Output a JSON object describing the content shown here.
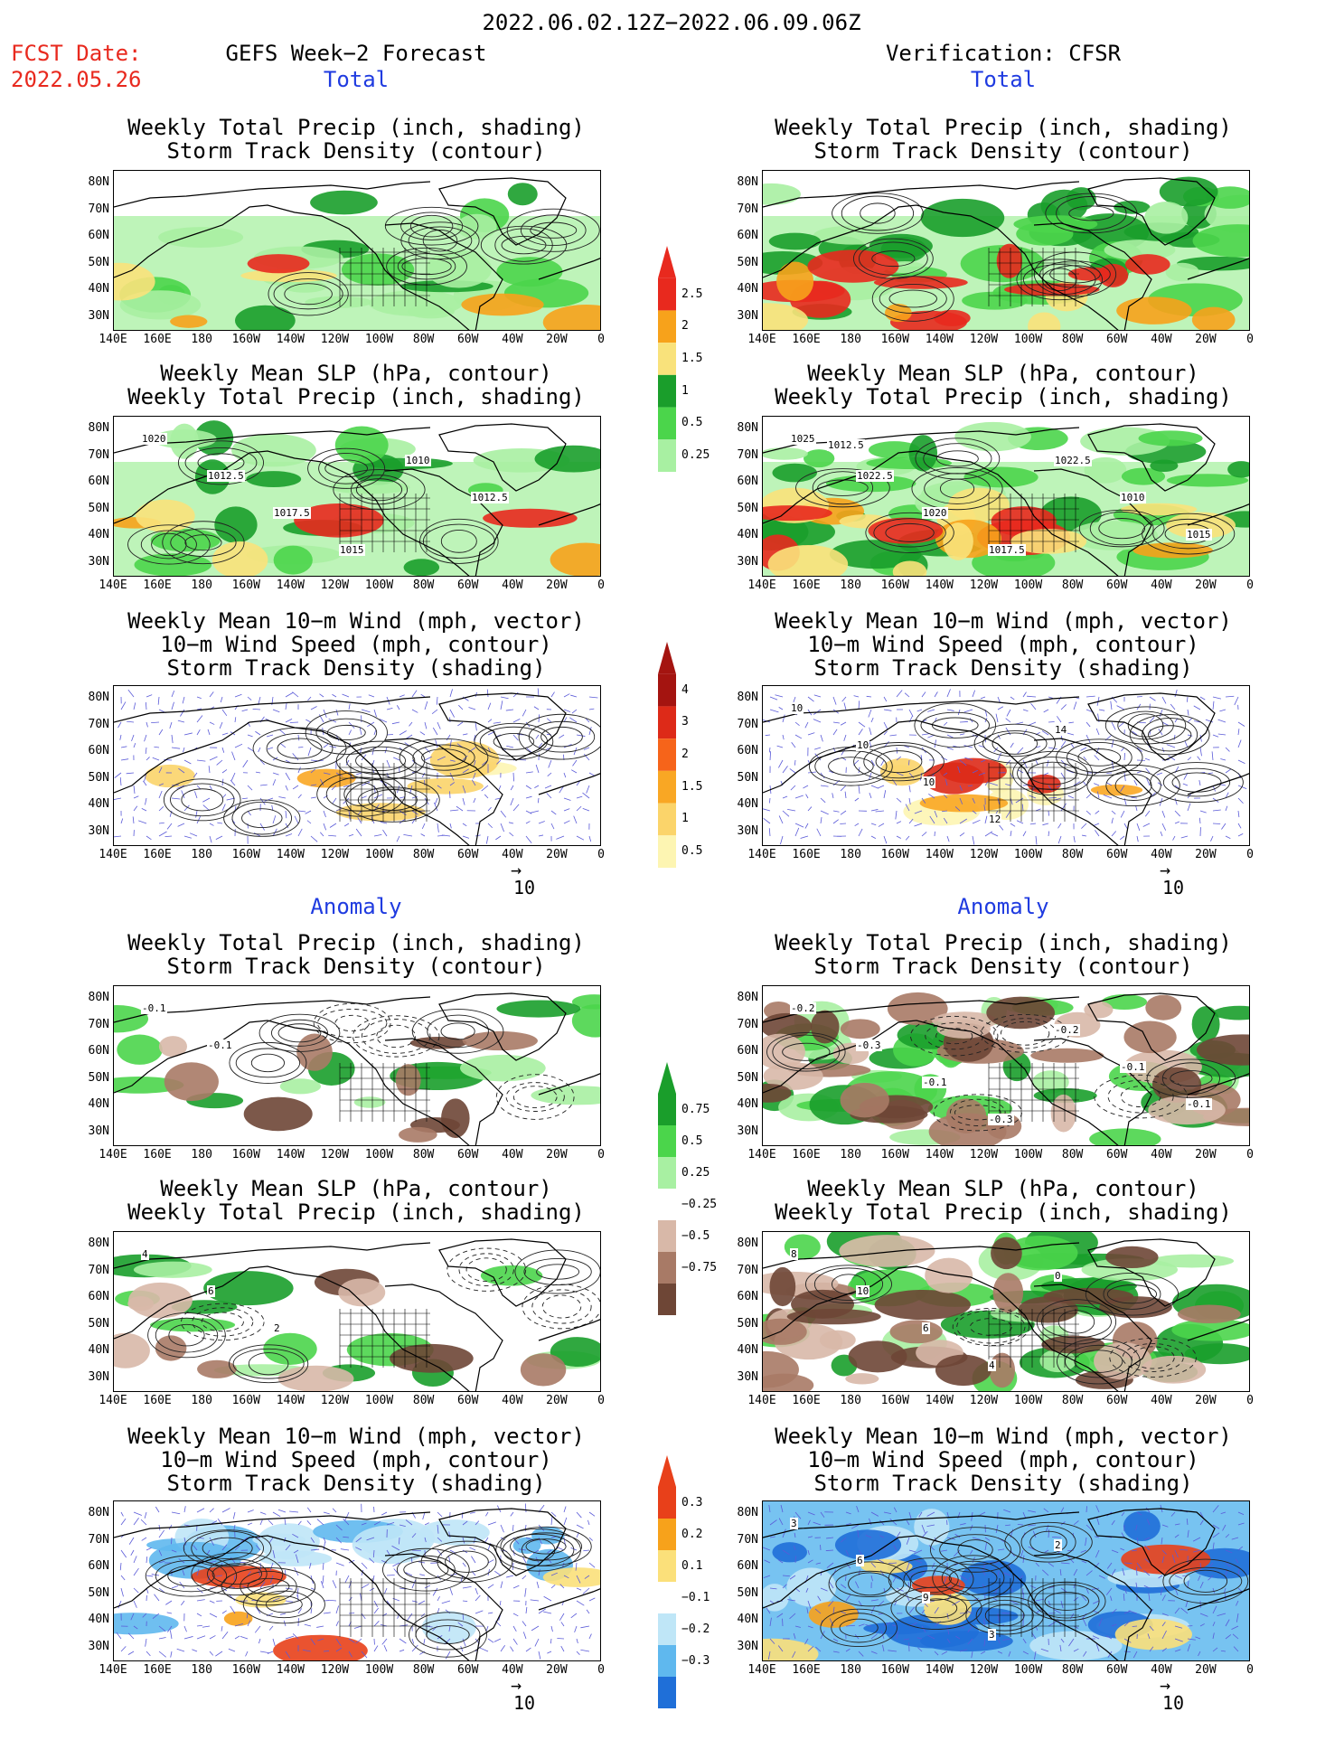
{
  "header": {
    "period": "2022.06.02.12Z−2022.06.09.06Z",
    "fcst_label": "FCST Date:",
    "fcst_date": "2022.05.26",
    "left_title": "GEFS Week−2 Forecast",
    "right_title": "Verification: CFSR",
    "total_label": "Total",
    "anomaly_label": "Anomaly"
  },
  "panel_titles": {
    "precip_track": [
      "Weekly Total Precip (inch, shading)",
      "Storm Track Density (contour)"
    ],
    "slp_precip": [
      "Weekly Mean SLP (hPa, contour)",
      "Weekly Total Precip (inch, shading)"
    ],
    "wind_track": [
      "Weekly Mean 10−m Wind (mph, vector)",
      "10−m Wind Speed (mph, contour)",
      "Storm Track Density (shading)"
    ]
  },
  "axes": {
    "lat_ticks": [
      "80N",
      "70N",
      "60N",
      "50N",
      "40N",
      "30N"
    ],
    "lon_ticks": [
      "140E",
      "160E",
      "180",
      "160W",
      "140W",
      "120W",
      "100W",
      "80W",
      "60W",
      "40W",
      "20W",
      "0"
    ]
  },
  "vector_ref": "10",
  "colorbars": {
    "precip_total": {
      "labels": [
        "2.5",
        "2",
        "1.5",
        "1",
        "0.5",
        "0.25"
      ],
      "colors": [
        "#e8291e",
        "#f7a21b",
        "#f9e27b",
        "#1a9e2b",
        "#4bd54b",
        "#a8f0a2"
      ]
    },
    "track_total": {
      "labels": [
        "4",
        "3",
        "2",
        "1.5",
        "1",
        "0.5"
      ],
      "colors": [
        "#a41410",
        "#dd2a18",
        "#f6641a",
        "#f9a724",
        "#fbd46a",
        "#fdf5b2"
      ]
    },
    "precip_anom": {
      "labels": [
        "0.75",
        "0.5",
        "0.25",
        "−0.25",
        "−0.5",
        "−0.75"
      ],
      "colors": [
        "#1a9e2b",
        "#4bd54b",
        "#a8f0a2",
        "#ffffff",
        "#d8b8a8",
        "#a87a66",
        "#6e4636"
      ]
    },
    "track_anom": {
      "labels": [
        "0.3",
        "0.2",
        "0.1",
        "−0.1",
        "−0.2",
        "−0.3"
      ],
      "colors": [
        "#e8401a",
        "#f7a21b",
        "#fbe07a",
        "#ffffff",
        "#bfe6f7",
        "#5fb8ee",
        "#1f6fd8"
      ]
    },
    "colors": {
      "title_red": "#e8291e",
      "label_blue": "#1f3be0",
      "wind_vector": "#5a5ad8"
    }
  },
  "contour_labels": {
    "fcst_slp_total": [
      "1020",
      "1012.5",
      "1017.5",
      "1015",
      "1010",
      "1012.5"
    ],
    "obs_slp_total": [
      "1025",
      "1022.5",
      "1020",
      "1017.5",
      "1022.5",
      "1010",
      "1015",
      "1012.5"
    ],
    "obs_wind_total": [
      "10",
      "10",
      "10",
      "12",
      "14"
    ],
    "fcst_precip_anom": [
      "-0.1",
      "-0.1"
    ],
    "obs_precip_anom": [
      "-0.2",
      "-0.3",
      "-0.1",
      "-0.3",
      "-0.2",
      "-0.1",
      "-0.1"
    ],
    "fcst_slp_anom": [
      "4",
      "6",
      "2"
    ],
    "obs_slp_anom": [
      "8",
      "10",
      "6",
      "4",
      "0"
    ],
    "obs_wind_anom": [
      "3",
      "6",
      "9",
      "3",
      "2"
    ]
  }
}
